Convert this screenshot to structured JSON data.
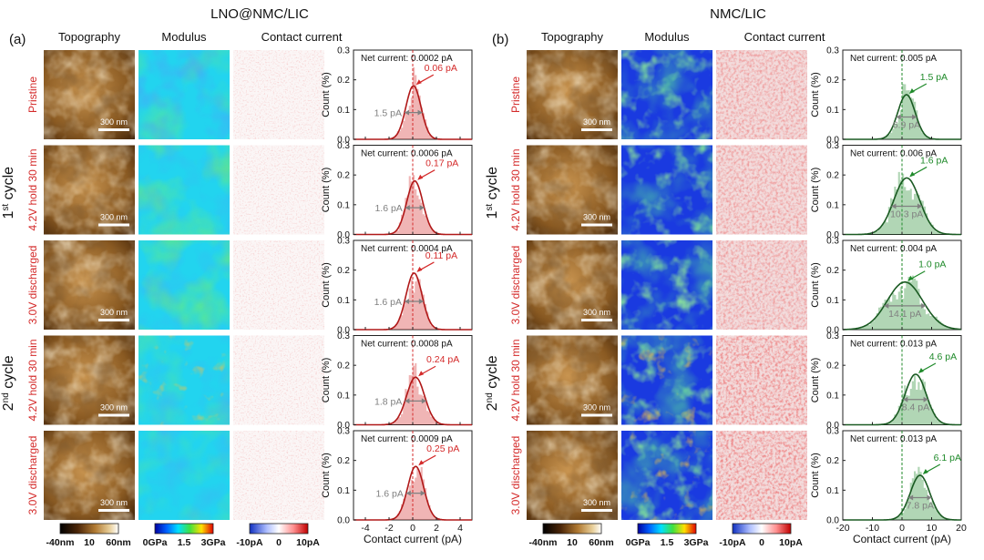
{
  "colors": {
    "red": "#d42a2a",
    "green": "#1f8a2a",
    "gray": "#808080",
    "topo_dark": "#2a1405",
    "topo_mid": "#9a6a2a",
    "topo_light": "#f4e8d0"
  },
  "panels": [
    {
      "id": "a",
      "label": "(a)",
      "title": "LNO@NMC/LIC",
      "headers": [
        "Topography",
        "Modulus",
        "Contact current"
      ],
      "rows": [
        {
          "net": "Net current: 0.0002 pA",
          "peak": "0.06 pA",
          "width": "1.5 pA"
        },
        {
          "net": "Net current: 0.0006 pA",
          "peak": "0.17 pA",
          "width": "1.6 pA"
        },
        {
          "net": "Net current: 0.0004 pA",
          "peak": "0.11 pA",
          "width": "1.6 pA"
        },
        {
          "net": "Net current: 0.0008 pA",
          "peak": "0.24 pA",
          "width": "1.8 pA"
        },
        {
          "net": "Net current: 0.0009 pA",
          "peak": "0.25 pA",
          "width": "1.6 pA"
        }
      ],
      "xticks": [
        "-4",
        "-2",
        "0",
        "2",
        "4"
      ],
      "xlabel": "Contact current (pA)"
    },
    {
      "id": "b",
      "label": "(b)",
      "title": "NMC/LIC",
      "headers": [
        "Topography",
        "Modulus",
        "Contact current"
      ],
      "rows": [
        {
          "net": "Net current: 0.005 pA",
          "peak": "1.5 pA",
          "width": "6.9 pA"
        },
        {
          "net": "Net current: 0.006 pA",
          "peak": "1.6 pA",
          "width": "10.3 pA"
        },
        {
          "net": "Net current: 0.004 pA",
          "peak": "1.0 pA",
          "width": "14.1 pA"
        },
        {
          "net": "Net current: 0.013 pA",
          "peak": "4.6 pA",
          "width": "8.4 pA"
        },
        {
          "net": "Net current: 0.013 pA",
          "peak": "6.1 pA",
          "width": "7.8 pA"
        }
      ],
      "xticks": [
        "-20",
        "-10",
        "0",
        "10",
        "20"
      ],
      "xlabel": "Contact current (pA)"
    }
  ],
  "row_labels": [
    "Pristine",
    "4.2V hold 30 min",
    "3.0V discharged",
    "4.2V hold 30 min",
    "3.0V discharged"
  ],
  "cycles": [
    {
      "base": "1",
      "sup": "st",
      "tail": " cycle"
    },
    {
      "base": "2",
      "sup": "nd",
      "tail": " cycle"
    }
  ],
  "scale_bar": "300 nm",
  "yaxis": {
    "label": "Count (%)",
    "ticks": [
      "0.0",
      "0.1",
      "0.2",
      "0.3"
    ]
  },
  "colorbars": {
    "topography": [
      "-40nm",
      "10",
      "60nm"
    ],
    "modulus": [
      "0GPa",
      "1.5",
      "3GPa"
    ],
    "current": [
      "-10pA",
      "0",
      "10pA"
    ]
  },
  "chart_data": [
    {
      "type": "area",
      "panel": "a",
      "title": "Contact current",
      "xlabel": "Contact current (pA)",
      "ylabel": "Count (%)",
      "xlim": [
        -5,
        5
      ],
      "ylim": [
        0,
        0.3
      ],
      "series": [
        {
          "name": "Pristine",
          "peak_pA": 0.06,
          "fwhm_pA": 1.5,
          "max_count": 0.18,
          "net_current_pA": 0.0002
        },
        {
          "name": "1st cycle 4.2V hold 30 min",
          "peak_pA": 0.17,
          "fwhm_pA": 1.6,
          "max_count": 0.18,
          "net_current_pA": 0.0006
        },
        {
          "name": "1st cycle 3.0V discharged",
          "peak_pA": 0.11,
          "fwhm_pA": 1.6,
          "max_count": 0.19,
          "net_current_pA": 0.0004
        },
        {
          "name": "2nd cycle 4.2V hold 30 min",
          "peak_pA": 0.24,
          "fwhm_pA": 1.8,
          "max_count": 0.16,
          "net_current_pA": 0.0008
        },
        {
          "name": "2nd cycle 3.0V discharged",
          "peak_pA": 0.25,
          "fwhm_pA": 1.6,
          "max_count": 0.18,
          "net_current_pA": 0.0009
        }
      ]
    },
    {
      "type": "area",
      "panel": "b",
      "title": "Contact current",
      "xlabel": "Contact current (pA)",
      "ylabel": "Count (%)",
      "xlim": [
        -20,
        20
      ],
      "ylim": [
        0,
        0.3
      ],
      "series": [
        {
          "name": "Pristine",
          "peak_pA": 1.5,
          "fwhm_pA": 6.9,
          "max_count": 0.15,
          "net_current_pA": 0.005
        },
        {
          "name": "1st cycle 4.2V hold 30 min",
          "peak_pA": 1.6,
          "fwhm_pA": 10.3,
          "max_count": 0.19,
          "net_current_pA": 0.006
        },
        {
          "name": "1st cycle 3.0V discharged",
          "peak_pA": 1.0,
          "fwhm_pA": 14.1,
          "max_count": 0.16,
          "net_current_pA": 0.004
        },
        {
          "name": "2nd cycle 4.2V hold 30 min",
          "peak_pA": 4.6,
          "fwhm_pA": 8.4,
          "max_count": 0.17,
          "net_current_pA": 0.013
        },
        {
          "name": "2nd cycle 3.0V discharged",
          "peak_pA": 6.1,
          "fwhm_pA": 7.8,
          "max_count": 0.15,
          "net_current_pA": 0.013
        }
      ]
    }
  ]
}
